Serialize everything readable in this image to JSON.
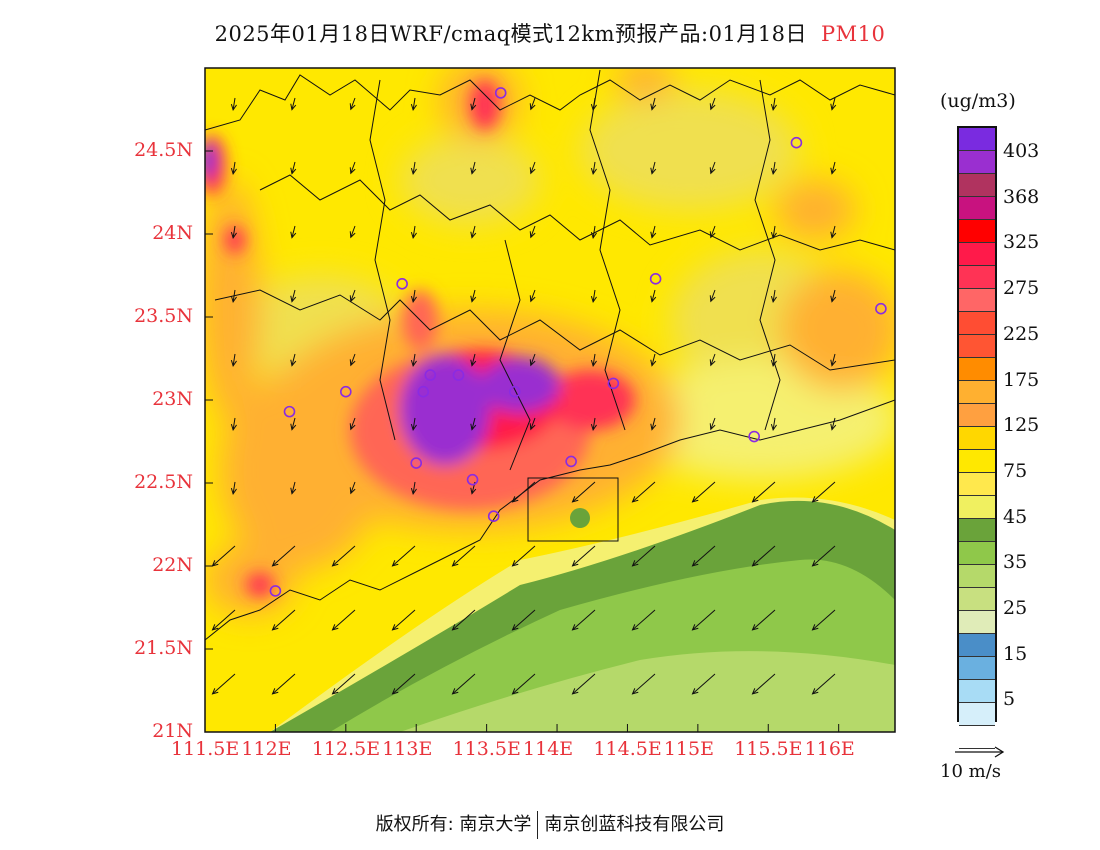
{
  "title": {
    "prefix": "2025年01月18日WRF/cmaq模式12km预报产品:01月18日",
    "pollutant": "PM10"
  },
  "map": {
    "lat_labels": [
      "24.5N",
      "24N",
      "23.5N",
      "23N",
      "22.5N",
      "22N",
      "21.5N",
      "21N"
    ],
    "lon_labels": [
      "111.5E",
      "112E",
      "112.5E",
      "113E",
      "113.5E",
      "114E",
      "114.5E",
      "115E",
      "115.5E",
      "116E"
    ],
    "lon_range": [
      111.5,
      116.4
    ],
    "lat_range": [
      21.0,
      25.0
    ],
    "stations": [
      {
        "lon": 113.6,
        "lat": 24.85
      },
      {
        "lon": 115.7,
        "lat": 24.55
      },
      {
        "lon": 112.9,
        "lat": 23.7
      },
      {
        "lon": 114.7,
        "lat": 23.73
      },
      {
        "lon": 116.3,
        "lat": 23.55
      },
      {
        "lon": 112.5,
        "lat": 23.05
      },
      {
        "lon": 112.1,
        "lat": 22.93
      },
      {
        "lon": 113.05,
        "lat": 23.05
      },
      {
        "lon": 113.1,
        "lat": 23.15
      },
      {
        "lon": 113.3,
        "lat": 23.15
      },
      {
        "lon": 113.7,
        "lat": 23.05
      },
      {
        "lon": 114.4,
        "lat": 23.1
      },
      {
        "lon": 115.4,
        "lat": 22.78
      },
      {
        "lon": 113.0,
        "lat": 22.62
      },
      {
        "lon": 113.4,
        "lat": 22.52
      },
      {
        "lon": 114.1,
        "lat": 22.63
      },
      {
        "lon": 113.55,
        "lat": 22.3
      },
      {
        "lon": 112.0,
        "lat": 21.85
      }
    ]
  },
  "legend": {
    "unit": "(ug/m3)",
    "colors": [
      "#7a2be0",
      "#9a2fd0",
      "#b0335f",
      "#c8127f",
      "#ff0000",
      "#ff1a4a",
      "#ff3355",
      "#ff6666",
      "#ff4d33",
      "#ff5533",
      "#ff8c00",
      "#ffb030",
      "#ffa040",
      "#ffd700",
      "#ffe800",
      "#ffe84d",
      "#f0f060",
      "#6aa33a",
      "#8fc84a",
      "#b5d96a",
      "#c8e080",
      "#e0ecb8",
      "#4a8ec8",
      "#6ab0e0",
      "#a8dcf5",
      "#d6effa",
      "#ffffff"
    ],
    "labels": [
      "403",
      "368",
      "325",
      "275",
      "225",
      "175",
      "125",
      "75",
      "45",
      "35",
      "25",
      "15",
      "5"
    ],
    "wind_label": "10  m/s"
  },
  "footer": {
    "left": "版权所有: 南京大学",
    "right": "南京创蓝科技有限公司"
  }
}
